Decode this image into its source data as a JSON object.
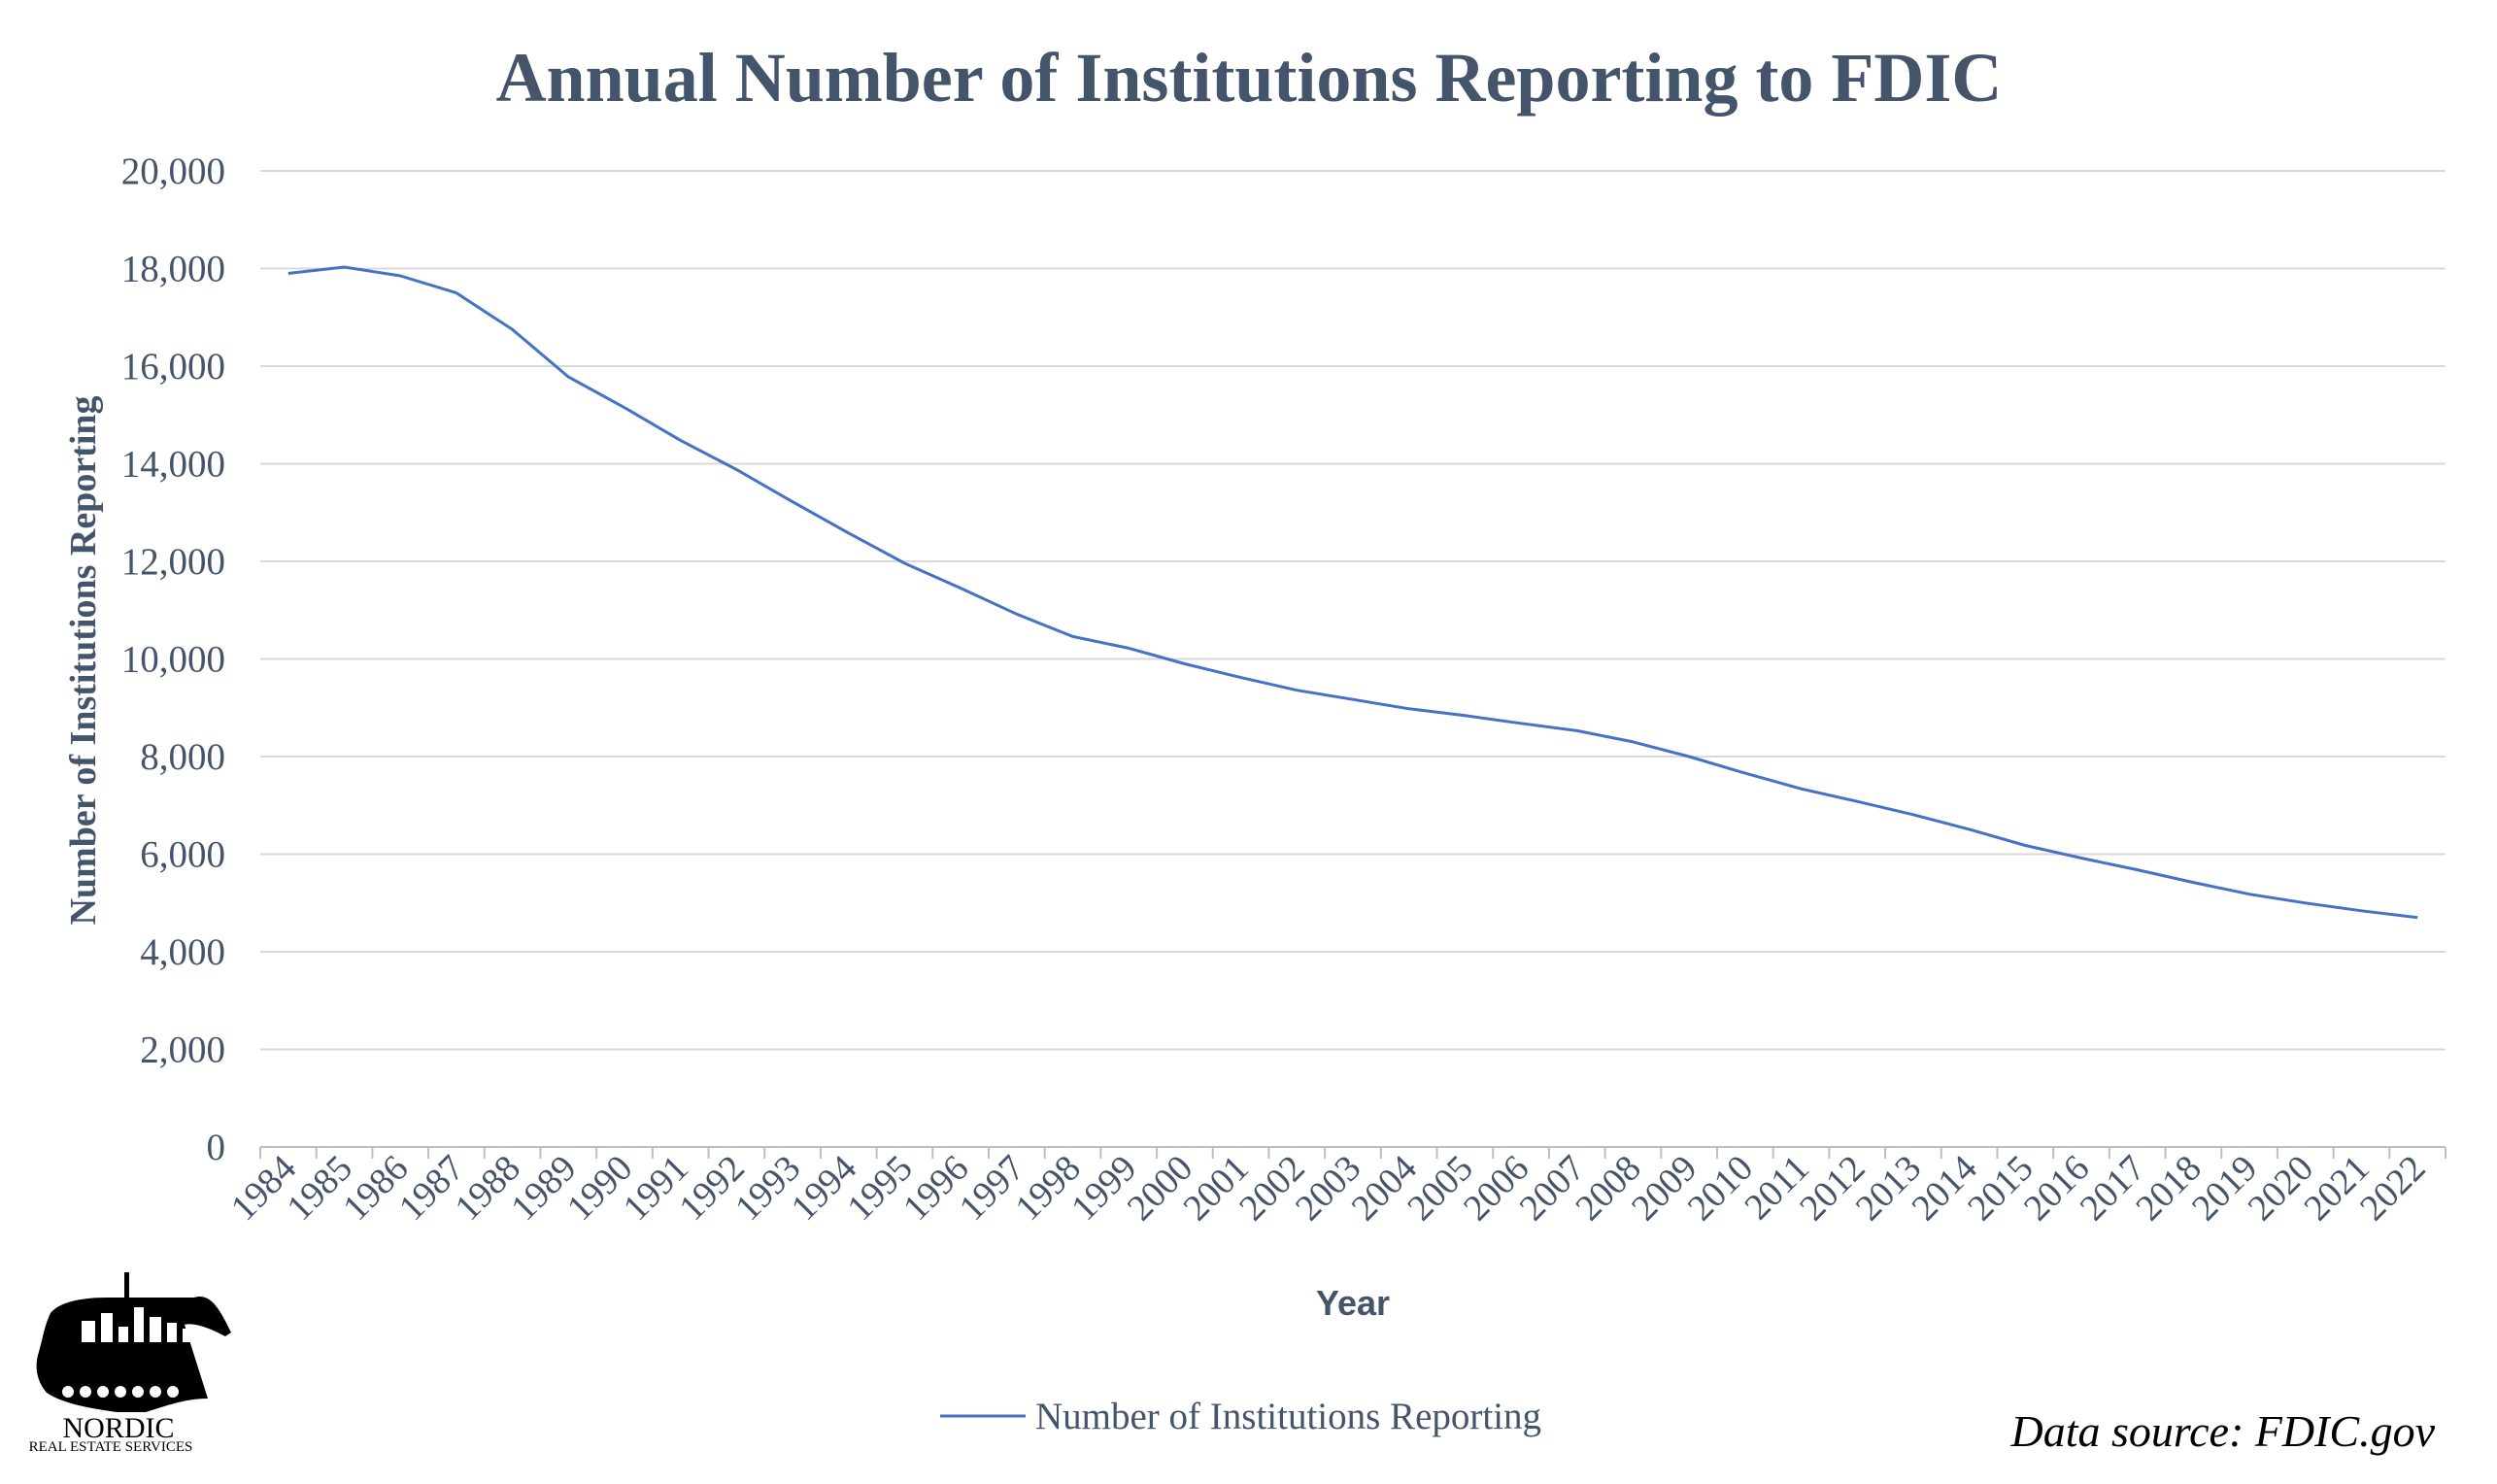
{
  "chart_data": {
    "type": "line",
    "title": "Annual Number of Institutions Reporting to FDIC",
    "xlabel": "Year",
    "ylabel": "Number of Institutions Reporting",
    "ylim": [
      0,
      20000
    ],
    "yticks": [
      0,
      2000,
      4000,
      6000,
      8000,
      10000,
      12000,
      14000,
      16000,
      18000,
      20000
    ],
    "ytick_labels": [
      "0",
      "2,000",
      "4,000",
      "6,000",
      "8,000",
      "10,000",
      "12,000",
      "14,000",
      "16,000",
      "18,000",
      "20,000"
    ],
    "categories": [
      "1984",
      "1985",
      "1986",
      "1987",
      "1988",
      "1989",
      "1990",
      "1991",
      "1992",
      "1993",
      "1994",
      "1995",
      "1996",
      "1997",
      "1998",
      "1999",
      "2000",
      "2001",
      "2002",
      "2003",
      "2004",
      "2005",
      "2006",
      "2007",
      "2008",
      "2009",
      "2010",
      "2011",
      "2012",
      "2013",
      "2014",
      "2015",
      "2016",
      "2017",
      "2018",
      "2019",
      "2020",
      "2021",
      "2022"
    ],
    "series": [
      {
        "name": "Number of Institutions Reporting",
        "color": "#4472c4",
        "values": [
          17900,
          18030,
          17850,
          17500,
          16750,
          15780,
          15150,
          14480,
          13880,
          13220,
          12580,
          11960,
          11450,
          10920,
          10460,
          10220,
          9900,
          9620,
          9360,
          9170,
          8980,
          8840,
          8680,
          8530,
          8300,
          8000,
          7660,
          7340,
          7080,
          6810,
          6510,
          6180,
          5920,
          5680,
          5420,
          5180,
          5000,
          4840,
          4700
        ]
      }
    ],
    "grid": true,
    "legend_position": "bottom"
  },
  "source": {
    "text": "Data source: FDIC.gov"
  },
  "logo": {
    "name": "NORDIC",
    "subtitle": "REAL ESTATE SERVICES"
  }
}
